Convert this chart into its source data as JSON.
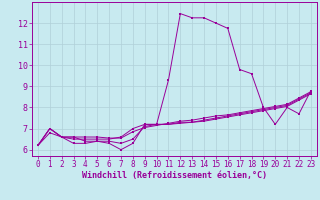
{
  "xlabel": "Windchill (Refroidissement éolien,°C)",
  "xlim": [
    -0.5,
    23.5
  ],
  "ylim": [
    5.7,
    13.0
  ],
  "xticks": [
    0,
    1,
    2,
    3,
    4,
    5,
    6,
    7,
    8,
    9,
    10,
    11,
    12,
    13,
    14,
    15,
    16,
    17,
    18,
    19,
    20,
    21,
    22,
    23
  ],
  "yticks": [
    6,
    7,
    8,
    9,
    10,
    11,
    12
  ],
  "bg_color": "#c8eaf0",
  "line_color": "#990099",
  "grid_color": "#b0d0d8",
  "series": [
    [
      6.2,
      7.0,
      6.6,
      6.3,
      6.3,
      6.4,
      6.3,
      6.0,
      6.3,
      7.2,
      7.2,
      9.3,
      12.45,
      12.25,
      12.25,
      12.0,
      11.75,
      9.8,
      9.6,
      8.0,
      7.2,
      8.0,
      7.7,
      8.8
    ],
    [
      6.2,
      6.8,
      6.6,
      6.6,
      6.6,
      6.6,
      6.55,
      6.55,
      6.85,
      7.05,
      7.15,
      7.25,
      7.35,
      7.4,
      7.5,
      7.6,
      7.65,
      7.75,
      7.85,
      7.95,
      8.05,
      8.15,
      8.45,
      8.75
    ],
    [
      6.2,
      7.0,
      6.6,
      6.5,
      6.5,
      6.5,
      6.5,
      6.6,
      7.0,
      7.2,
      7.2,
      7.2,
      7.25,
      7.3,
      7.35,
      7.45,
      7.55,
      7.65,
      7.75,
      7.85,
      7.95,
      8.05,
      8.35,
      8.65
    ],
    [
      6.2,
      7.0,
      6.6,
      6.6,
      6.4,
      6.4,
      6.4,
      6.3,
      6.5,
      7.1,
      7.2,
      7.2,
      7.3,
      7.3,
      7.4,
      7.5,
      7.6,
      7.7,
      7.8,
      7.9,
      8.0,
      8.1,
      8.4,
      8.7
    ]
  ],
  "xlabel_fontsize": 6,
  "tick_fontsize": 5.5,
  "linewidth": 0.7,
  "markersize": 1.8
}
